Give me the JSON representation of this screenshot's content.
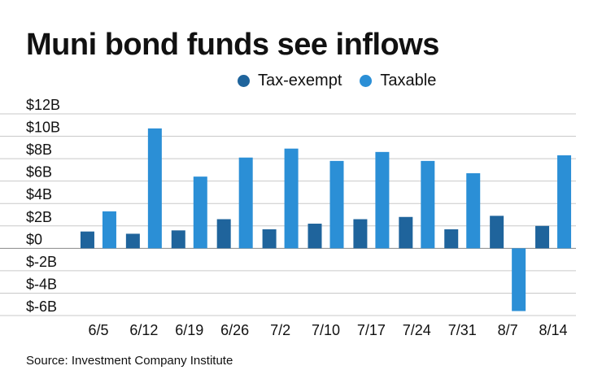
{
  "colors": {
    "tax_exempt": "#1f649c",
    "taxable": "#2b8fd6",
    "grid": "#c9c9c9",
    "axis": "#888888",
    "text": "#111111"
  },
  "legend": {
    "tax_exempt": "Tax-exempt",
    "taxable": "Taxable"
  },
  "source": "Source: Investment Company Institute",
  "chart_data": {
    "type": "bar",
    "title": "Muni bond funds see inflows",
    "categories": [
      "6/5",
      "6/12",
      "6/19",
      "6/26",
      "7/2",
      "7/10",
      "7/17",
      "7/24",
      "7/31",
      "8/7",
      "8/14"
    ],
    "series": [
      {
        "name": "Tax-exempt",
        "values": [
          1.5,
          1.3,
          1.6,
          2.6,
          1.7,
          2.2,
          2.6,
          2.8,
          1.7,
          2.9,
          2.0
        ]
      },
      {
        "name": "Taxable",
        "values": [
          3.3,
          10.7,
          6.4,
          8.1,
          8.9,
          7.8,
          8.6,
          7.8,
          6.7,
          -5.6,
          8.3
        ]
      }
    ],
    "yticks": [
      "$12B",
      "$10B",
      "$8B",
      "$6B",
      "$4B",
      "$2B",
      "$0",
      "$-2B",
      "$-4B",
      "$-6B"
    ],
    "ylim": [
      -6,
      12
    ],
    "xlabel": "",
    "ylabel": "",
    "grid": true,
    "legend_position": "top"
  }
}
